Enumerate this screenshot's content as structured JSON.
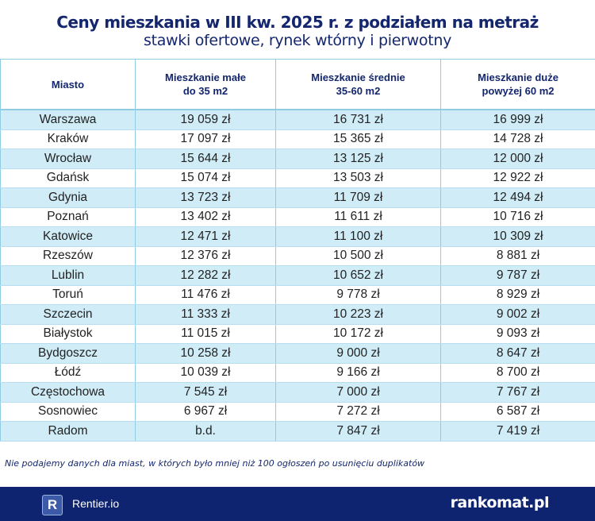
{
  "title": "Ceny mieszkania w III kw. 2025 r. z podziałem na metraż",
  "subtitle": "stawki ofertowe, rynek wtórny i pierwotny",
  "chart_data": {
    "type": "table",
    "columns": [
      {
        "line1": "Miasto",
        "line2": ""
      },
      {
        "line1": "Mieszkanie małe",
        "line2": "do 35 m2"
      },
      {
        "line1": "Mieszkanie średnie",
        "line2": "35-60 m2"
      },
      {
        "line1": "Mieszkanie duże",
        "line2": "powyżej 60 m2"
      }
    ],
    "rows": [
      [
        "Warszawa",
        "19 059 zł",
        "16 731 zł",
        "16 999 zł"
      ],
      [
        "Kraków",
        "17 097 zł",
        "15 365 zł",
        "14 728 zł"
      ],
      [
        "Wrocław",
        "15 644 zł",
        "13 125 zł",
        "12 000 zł"
      ],
      [
        "Gdańsk",
        "15 074 zł",
        "13 503 zł",
        "12 922 zł"
      ],
      [
        "Gdynia",
        "13 723 zł",
        "11 709 zł",
        "12 494 zł"
      ],
      [
        "Poznań",
        "13 402 zł",
        "11 611 zł",
        "10 716 zł"
      ],
      [
        "Katowice",
        "12 471 zł",
        "11 100 zł",
        "10 309 zł"
      ],
      [
        "Rzeszów",
        "12 376 zł",
        "10 500 zł",
        "8 881 zł"
      ],
      [
        "Lublin",
        "12 282 zł",
        "10 652 zł",
        "9 787 zł"
      ],
      [
        "Toruń",
        "11 476 zł",
        "9 778 zł",
        "8 929 zł"
      ],
      [
        "Szczecin",
        "11 333 zł",
        "10 223 zł",
        "9 002 zł"
      ],
      [
        "Białystok",
        "11 015 zł",
        "10 172 zł",
        "9 093 zł"
      ],
      [
        "Bydgoszcz",
        "10 258 zł",
        "9 000 zł",
        "8 647 zł"
      ],
      [
        "Łódź",
        "10 039 zł",
        "9 166 zł",
        "8 700 zł"
      ],
      [
        "Częstochowa",
        "7 545 zł",
        "7 000 zł",
        "7 767 zł"
      ],
      [
        "Sosnowiec",
        "6 967 zł",
        "7 272 zł",
        "6 587 zł"
      ],
      [
        "Radom",
        "b.d.",
        "7 847 zł",
        "7 419 zł"
      ]
    ]
  },
  "note": "Nie podajemy danych dla miast, w których było mniej niż 100 ogłoszeń po usunięciu duplikatów",
  "footer": {
    "left_logo_letter": "R",
    "left_brand": "Rentier.io",
    "right_brand": "rankomat.pl"
  },
  "colors": {
    "navy": "#0e2471",
    "row_highlight": "#cfecf7",
    "border": "#8fcbe3"
  }
}
